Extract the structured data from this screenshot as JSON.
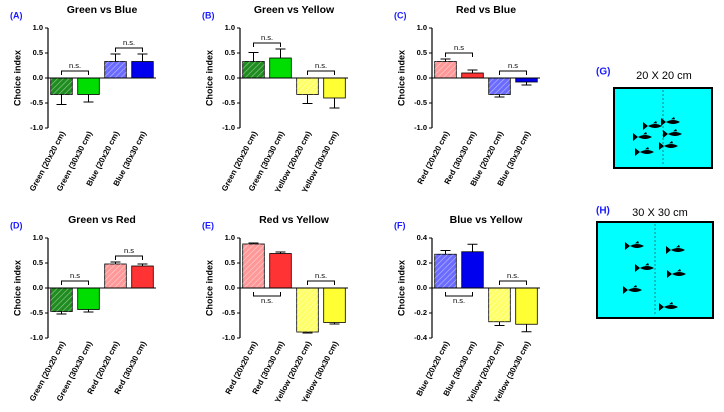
{
  "chart_data": [
    {
      "type": "bar",
      "label": "(A)",
      "title": "Green vs Blue",
      "y_label": "Choice index",
      "categories": [
        "Green (20x20 cm)",
        "Green (30x30 cm)",
        "Blue (20x20 cm)",
        "Blue (30x30 cm)"
      ],
      "values": [
        -0.33,
        -0.33,
        0.33,
        0.33
      ],
      "errors": [
        0.2,
        0.15,
        0.15,
        0.15
      ],
      "colors": [
        "#1e8c1e",
        "#00dd00",
        "#6b6bff",
        "#0000ee"
      ],
      "hatched": [
        true,
        false,
        true,
        false
      ],
      "annotations": [
        "n.s.",
        "n.s."
      ],
      "ylim": [
        -1,
        1
      ],
      "yticks": [
        {
          "value": -1,
          "label": "-1.0"
        },
        {
          "value": -0.5,
          "label": "-0.5"
        },
        {
          "value": 0,
          "label": "0.0"
        },
        {
          "value": 0.5,
          "label": "0.5"
        },
        {
          "value": 1,
          "label": "1.0"
        }
      ]
    },
    {
      "type": "bar",
      "label": "(B)",
      "title": "Green vs Yellow",
      "y_label": "Choice index",
      "categories": [
        "Green (20x20 cm)",
        "Green (30x30 cm)",
        "Yellow (20x20 cm)",
        "Yellow (30x30 cm)"
      ],
      "values": [
        0.33,
        0.4,
        -0.33,
        -0.4
      ],
      "errors": [
        0.18,
        0.18,
        0.18,
        0.2
      ],
      "colors": [
        "#1e8c1e",
        "#00dd00",
        "#ffff66",
        "#ffff33"
      ],
      "hatched": [
        true,
        false,
        true,
        false
      ],
      "annotations": [
        "n.s.",
        "n.s."
      ],
      "ylim": [
        -1,
        1
      ],
      "yticks": [
        {
          "value": -1,
          "label": "-1.0"
        },
        {
          "value": -0.5,
          "label": "-0.5"
        },
        {
          "value": 0,
          "label": "0.0"
        },
        {
          "value": 0.5,
          "label": "0.5"
        },
        {
          "value": 1,
          "label": "1.0"
        }
      ]
    },
    {
      "type": "bar",
      "label": "(C)",
      "title": "Red vs Blue",
      "y_label": "Choice index",
      "categories": [
        "Red (20x20 cm)",
        "Red (30x30 cm)",
        "Blue (20x20 cm)",
        "Blue (30x30 cm)"
      ],
      "values": [
        0.33,
        0.1,
        -0.33,
        -0.08
      ],
      "errors": [
        0.05,
        0.06,
        0.05,
        0.06
      ],
      "colors": [
        "#ff9999",
        "#ff3333",
        "#6b6bff",
        "#0000ee"
      ],
      "hatched": [
        true,
        false,
        true,
        false
      ],
      "annotations": [
        "n.s",
        "n.s"
      ],
      "ylim": [
        -1,
        1
      ],
      "yticks": [
        {
          "value": -1,
          "label": "-1.0"
        },
        {
          "value": -0.5,
          "label": "-0.5"
        },
        {
          "value": 0,
          "label": "0.0"
        },
        {
          "value": 0.5,
          "label": "0.5"
        },
        {
          "value": 1,
          "label": "1.0"
        }
      ]
    },
    {
      "type": "bar",
      "label": "(D)",
      "title": "Green vs Red",
      "y_label": "Choice index",
      "categories": [
        "Green (20x20 cm)",
        "Green (30x30 cm)",
        "Red (20x20 cm)",
        "Red (30x30 cm)"
      ],
      "values": [
        -0.47,
        -0.43,
        0.48,
        0.44
      ],
      "errors": [
        0.05,
        0.05,
        0.04,
        0.04
      ],
      "colors": [
        "#1e8c1e",
        "#00dd00",
        "#ff9999",
        "#ff3333"
      ],
      "hatched": [
        true,
        false,
        true,
        false
      ],
      "annotations": [
        "n.s",
        "n.s"
      ],
      "ylim": [
        -1,
        1
      ],
      "yticks": [
        {
          "value": -1,
          "label": "-1.0"
        },
        {
          "value": -0.5,
          "label": "-0.5"
        },
        {
          "value": 0,
          "label": "0.0"
        },
        {
          "value": 0.5,
          "label": "0.5"
        },
        {
          "value": 1,
          "label": "1.0"
        }
      ]
    },
    {
      "type": "bar",
      "label": "(E)",
      "title": "Red vs Yellow",
      "y_label": "Choice index",
      "categories": [
        "Red (20x20 cm)",
        "Red (30x30 cm)",
        "Yellow (20x20 cm)",
        "Yellow (30x30 cm)"
      ],
      "values": [
        0.88,
        0.69,
        -0.88,
        -0.69
      ],
      "errors": [
        0.02,
        0.03,
        0.02,
        0.03
      ],
      "colors": [
        "#ff9999",
        "#ff3333",
        "#ffff66",
        "#ffff33"
      ],
      "hatched": [
        true,
        false,
        true,
        false
      ],
      "annotations": [
        "n.s.",
        "n.s."
      ],
      "ylim": [
        -1,
        1
      ],
      "yticks": [
        {
          "value": -1,
          "label": "-1.0"
        },
        {
          "value": -0.5,
          "label": "-0.5"
        },
        {
          "value": 0,
          "label": "0.0"
        },
        {
          "value": 0.5,
          "label": "0.5"
        },
        {
          "value": 1,
          "label": "1.0"
        }
      ]
    },
    {
      "type": "bar",
      "label": "(F)",
      "title": "Blue vs Yellow",
      "y_label": "Choice index",
      "categories": [
        "Blue (20x20 cm)",
        "Blue (30x30 cm)",
        "Yellow (20x20 cm)",
        "Yellow (30x30 cm)"
      ],
      "values": [
        0.27,
        0.29,
        -0.27,
        -0.29
      ],
      "errors": [
        0.03,
        0.06,
        0.03,
        0.06
      ],
      "colors": [
        "#6b6bff",
        "#0000ee",
        "#ffff66",
        "#ffff33"
      ],
      "hatched": [
        true,
        false,
        true,
        false
      ],
      "annotations": [
        "n.s.",
        "n.s."
      ],
      "ylim": [
        -0.4,
        0.4
      ],
      "yticks": [
        {
          "value": -0.4,
          "label": "-0.4"
        },
        {
          "value": -0.2,
          "label": "-0.2"
        },
        {
          "value": 0,
          "label": "0.0"
        },
        {
          "value": 0.2,
          "label": "0.2"
        },
        {
          "value": 0.4,
          "label": "0.4"
        }
      ]
    }
  ],
  "diagrams": [
    {
      "label": "(G)",
      "title": "20 X 20 cm"
    },
    {
      "label": "(H)",
      "title": "30 X 30 cm"
    }
  ]
}
